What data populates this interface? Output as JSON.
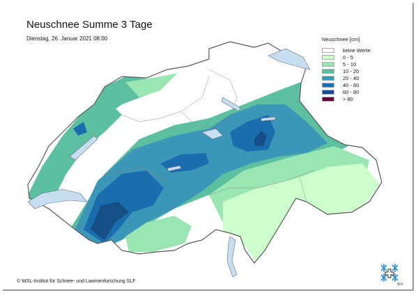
{
  "header": {
    "title": "Neuschnee Summe 3 Tage",
    "subtitle": "Dienstag, 26. Januar 2021 08:00"
  },
  "legend": {
    "title": "Neuschnee [cm]",
    "items": [
      {
        "label": "keine Werte",
        "color": "#ffffff"
      },
      {
        "label": "0 - 5",
        "color": "#ccffcc"
      },
      {
        "label": "5 - 10",
        "color": "#99e6b3"
      },
      {
        "label": "10 - 20",
        "color": "#5cbfa0"
      },
      {
        "label": "20 - 40",
        "color": "#3b96b8"
      },
      {
        "label": "40 - 60",
        "color": "#1a6eae"
      },
      {
        "label": "60 - 80",
        "color": "#154f85"
      },
      {
        "label": "> 80",
        "color": "#66003a"
      }
    ]
  },
  "map": {
    "lake_color": "#c6dff0",
    "border_color": "#555555"
  },
  "footer": {
    "copyright": "© WSL-Institut für Schnee- und Lawinenforschung SLF",
    "logo_text": "SLF"
  }
}
